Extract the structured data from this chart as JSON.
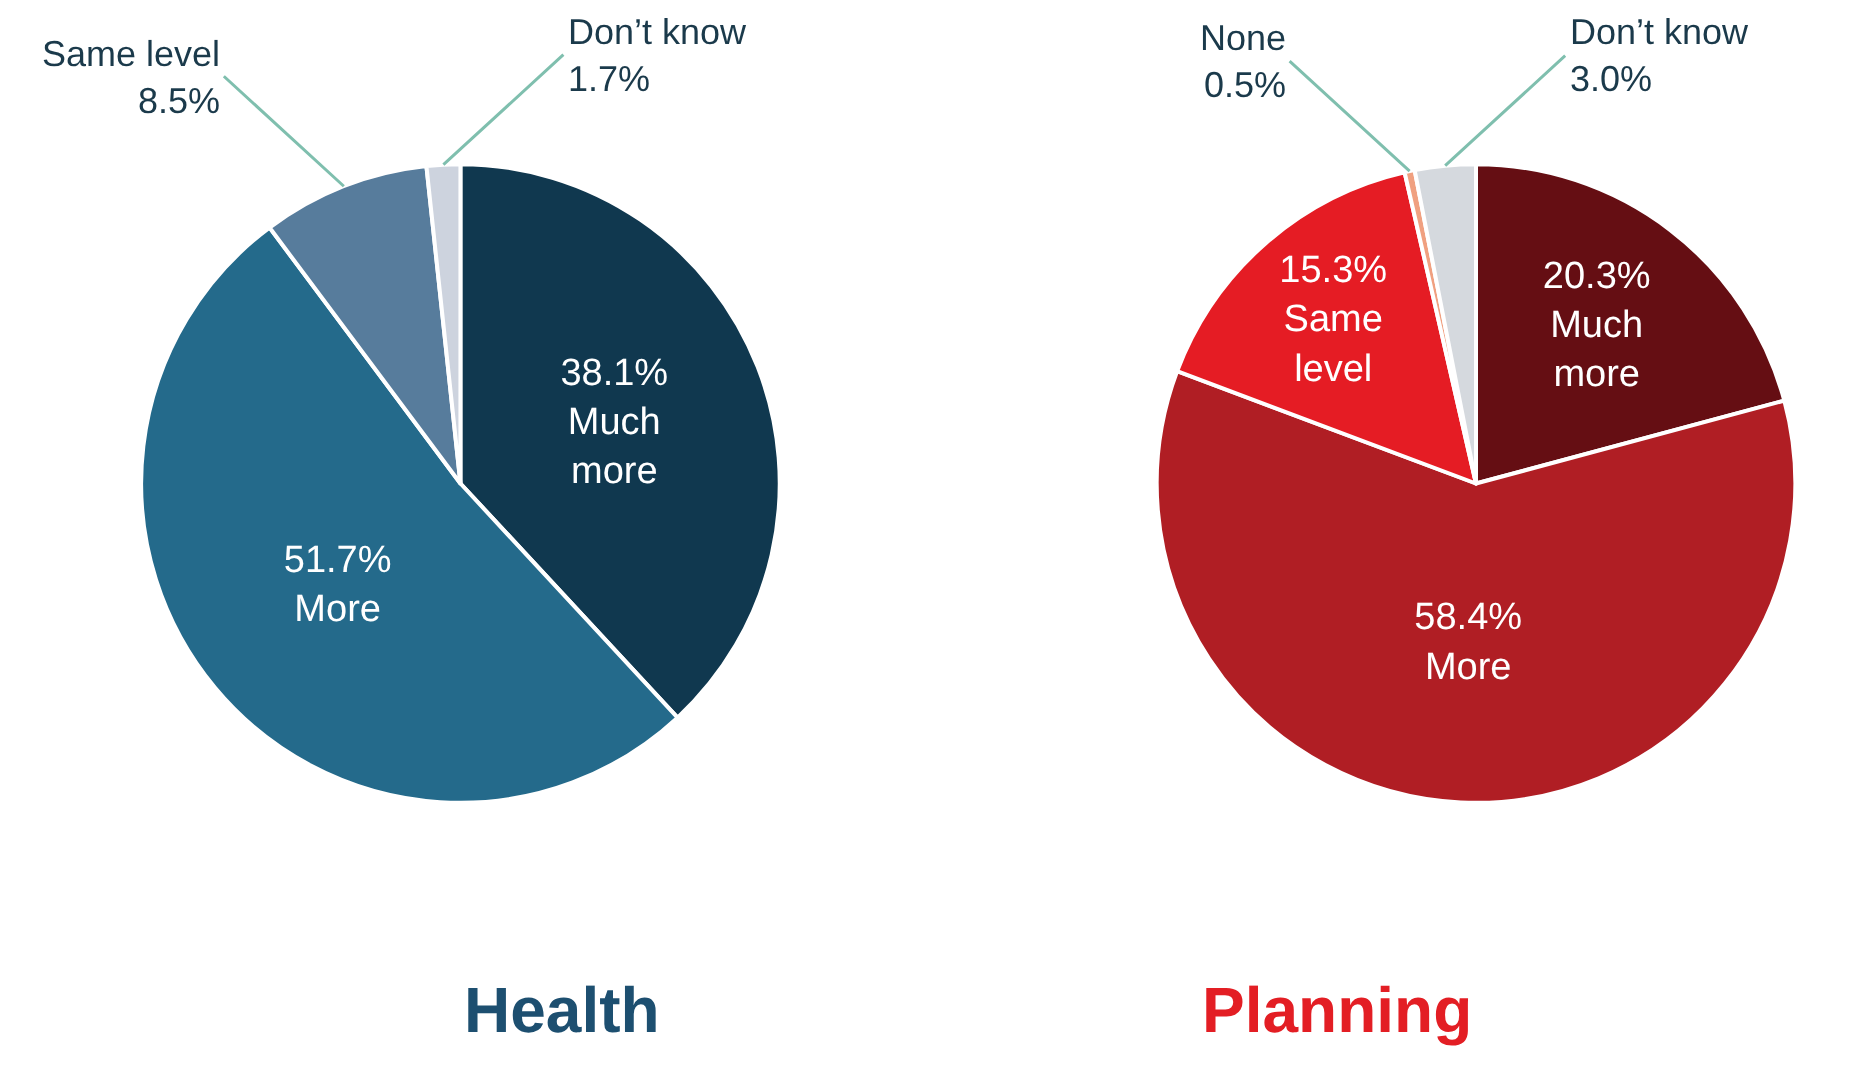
{
  "chart_data": [
    {
      "type": "pie",
      "title": "Health",
      "categories": [
        "Much more",
        "More",
        "Same level",
        "Don’t know"
      ],
      "values": [
        38.1,
        51.7,
        8.5,
        1.7
      ],
      "value_labels": [
        "38.1%",
        "51.7%",
        "8.5%",
        "1.7%"
      ],
      "colors": [
        "#10384f",
        "#246a8b",
        "#577c9c",
        "#cdd3de"
      ]
    },
    {
      "type": "pie",
      "title": "Planning",
      "categories": [
        "Much more",
        "More",
        "Same level",
        "None",
        "Don’t know"
      ],
      "values": [
        20.3,
        58.4,
        15.3,
        0.5,
        3.0
      ],
      "value_labels": [
        "20.3%",
        "58.4%",
        "15.3%",
        "0.5%",
        "3.0%"
      ],
      "colors": [
        "#650e13",
        "#b01e24",
        "#e51c24",
        "#f0a080",
        "#d5d9de"
      ]
    }
  ]
}
